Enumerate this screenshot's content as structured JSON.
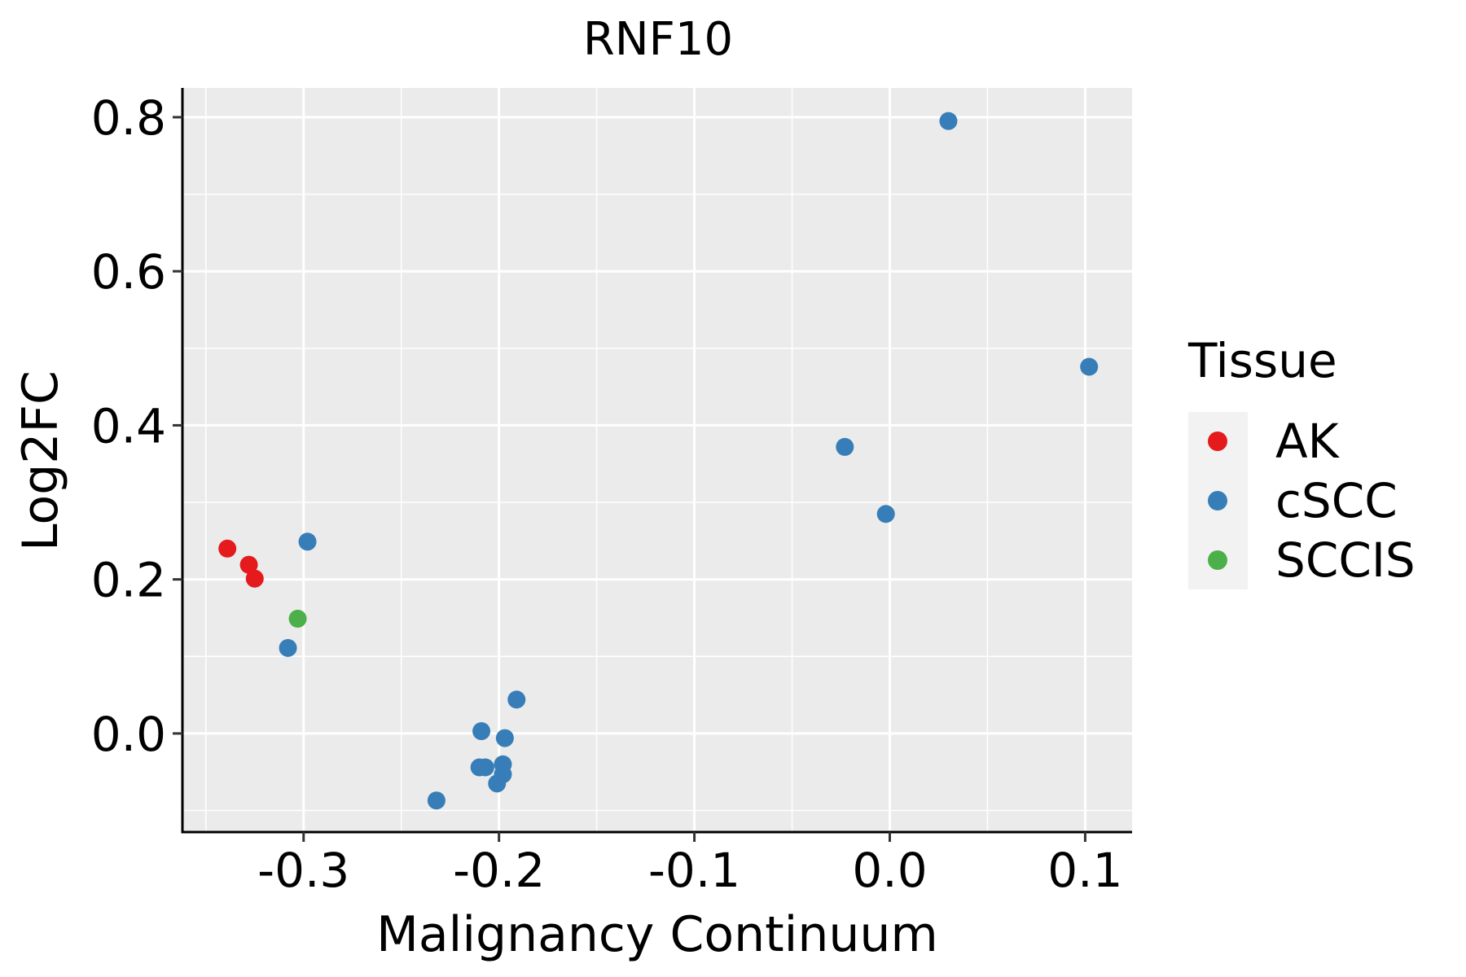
{
  "chart_data": {
    "type": "scatter",
    "title": "RNF10",
    "xlabel": "Malignancy Continuum",
    "ylabel": "Log2FC",
    "xlim": [
      -0.362,
      0.124
    ],
    "ylim": [
      -0.128,
      0.838
    ],
    "x_ticks": [
      -0.3,
      -0.2,
      -0.1,
      0.0,
      0.1
    ],
    "x_tick_labels": [
      "-0.3",
      "-0.2",
      "-0.1",
      "0.0",
      "0.1"
    ],
    "y_ticks": [
      0.0,
      0.2,
      0.4,
      0.6,
      0.8
    ],
    "y_tick_labels": [
      "0.0",
      "0.2",
      "0.4",
      "0.6",
      "0.8"
    ],
    "grid": true,
    "legend": {
      "title": "Tissue",
      "position": "right",
      "entries": [
        {
          "label": "AK",
          "color": "#E41A1C"
        },
        {
          "label": "cSCC",
          "color": "#377EB8"
        },
        {
          "label": "SCCIS",
          "color": "#4DAF4A"
        }
      ]
    },
    "series": [
      {
        "name": "AK",
        "color": "#E41A1C",
        "points": [
          [
            -0.339,
            0.24
          ],
          [
            -0.328,
            0.219
          ],
          [
            -0.325,
            0.201
          ]
        ]
      },
      {
        "name": "cSCC",
        "color": "#377EB8",
        "points": [
          [
            0.03,
            0.795
          ],
          [
            0.102,
            0.476
          ],
          [
            -0.023,
            0.372
          ],
          [
            -0.002,
            0.285
          ],
          [
            -0.298,
            0.249
          ],
          [
            -0.308,
            0.111
          ],
          [
            -0.191,
            0.044
          ],
          [
            -0.209,
            0.003
          ],
          [
            -0.197,
            -0.006
          ],
          [
            -0.198,
            -0.04
          ],
          [
            -0.21,
            -0.044
          ],
          [
            -0.207,
            -0.044
          ],
          [
            -0.198,
            -0.053
          ],
          [
            -0.201,
            -0.065
          ],
          [
            -0.232,
            -0.087
          ]
        ]
      },
      {
        "name": "SCCIS",
        "color": "#4DAF4A",
        "points": [
          [
            -0.303,
            0.149
          ]
        ]
      }
    ]
  }
}
